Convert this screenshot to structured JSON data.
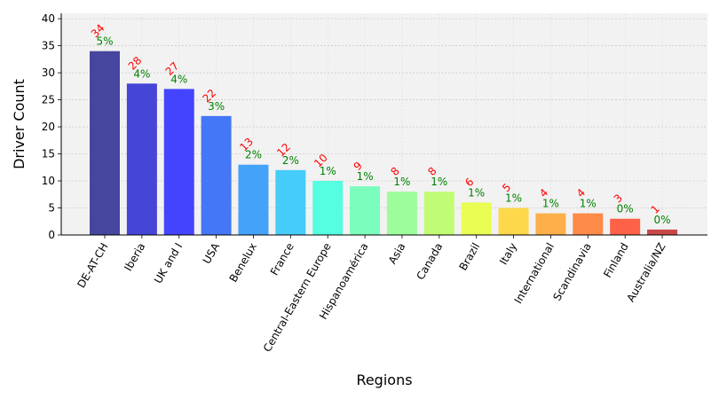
{
  "chart_data": {
    "type": "bar",
    "title": "",
    "xlabel": "Regions",
    "ylabel": "Driver Count",
    "ylim": [
      0,
      41
    ],
    "yticks": [
      0,
      5,
      10,
      15,
      20,
      25,
      30,
      35,
      40
    ],
    "grid": true,
    "legend": "none",
    "categories": [
      "DE-AT-CH",
      "Iberia",
      "UK and I",
      "USA",
      "Benelux",
      "France",
      "Central-Eastern Europe",
      "Hispanoamérica",
      "Asia",
      "Canada",
      "Brazil",
      "Italy",
      "International",
      "Scandinavia",
      "Finland",
      "Australia/NZ"
    ],
    "values": [
      34,
      28,
      27,
      22,
      13,
      12,
      10,
      9,
      8,
      8,
      6,
      5,
      4,
      4,
      3,
      1
    ],
    "percent_labels": [
      "5%",
      "4%",
      "4%",
      "3%",
      "2%",
      "2%",
      "1%",
      "1%",
      "1%",
      "1%",
      "1%",
      "1%",
      "1%",
      "1%",
      "0%",
      "0%"
    ],
    "bar_colors": [
      "#46469e",
      "#4545d6",
      "#4444fe",
      "#4477f6",
      "#45a2f9",
      "#46ccfa",
      "#55fde1",
      "#7bfdbd",
      "#9dfd9a",
      "#c0fd74",
      "#e9fd53",
      "#fcd84a",
      "#fdb049",
      "#fd8b47",
      "#fd6248",
      "#c84747"
    ],
    "count_label_color": "#ff0000",
    "percent_label_color": "#008000",
    "plot_background": "#f2f2f2"
  }
}
